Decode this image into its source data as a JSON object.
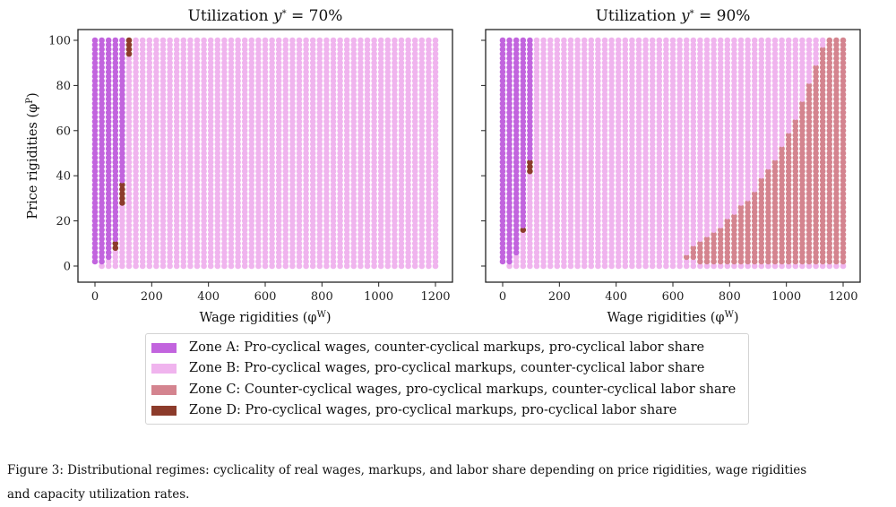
{
  "zones": {
    "A": {
      "label": "Zone A: Pro-cyclical wages, counter-cyclical markups, pro-cyclical labor share",
      "color": "#c264de"
    },
    "B": {
      "label": "Zone B: Pro-cyclical wages, pro-cyclical markups, counter-cyclical labor share",
      "color": "#f0b4ee"
    },
    "C": {
      "label": "Zone C: Counter-cyclical wages, pro-cyclical markups, counter-cyclical labor share",
      "color": "#d4848f"
    },
    "D": {
      "label": "Zone D: Pro-cyclical wages, pro-cyclical markups, pro-cyclical labor share",
      "color": "#8c3b2b"
    }
  },
  "caption": {
    "line1": "Figure 3: Distributional regimes: cyclicality of real wages, markups, and labor share depending on price rigidities, wage rigidities",
    "line2": "and capacity utilization rates."
  },
  "chart_data": [
    {
      "type": "scatter",
      "title": "Utilization y* = 70%",
      "title_prefix": "Utilization ",
      "title_var": "y",
      "title_sup": "*",
      "title_suffix": " = 70%",
      "xlabel": "Wage rigidities (φW)",
      "xlabel_prefix": "Wage rigidities (φ",
      "xlabel_sup": "W",
      "xlabel_suffix": ")",
      "ylabel": "Price rigidities (φP)",
      "ylabel_prefix": "Price rigidities (φ",
      "ylabel_sup": "P",
      "ylabel_suffix": ")",
      "xlim": [
        0,
        1200
      ],
      "ylim": [
        0,
        100
      ],
      "xticks": [
        0,
        200,
        400,
        600,
        800,
        1000,
        1200
      ],
      "yticks": [
        0,
        20,
        40,
        60,
        80,
        100
      ],
      "show_ytick_labels": true,
      "grid": {
        "x_start": 0,
        "x_step": 24,
        "x_count": 51,
        "y_start": 0,
        "y_step": 2,
        "y_count": 51
      },
      "default_zone": "B",
      "column_overrides": [
        {
          "x": 0,
          "segments": [
            {
              "zone": "none",
              "y": [
                0,
                0
              ]
            },
            {
              "zone": "A",
              "y": [
                2,
                100
              ]
            }
          ]
        },
        {
          "x": 24,
          "segments": [
            {
              "zone": "A",
              "y": [
                2,
                100
              ]
            }
          ]
        },
        {
          "x": 48,
          "segments": [
            {
              "zone": "A",
              "y": [
                4,
                100
              ]
            }
          ]
        },
        {
          "x": 72,
          "segments": [
            {
              "zone": "D",
              "y": [
                8,
                10
              ]
            },
            {
              "zone": "A",
              "y": [
                12,
                100
              ]
            }
          ]
        },
        {
          "x": 96,
          "segments": [
            {
              "zone": "D",
              "y": [
                28,
                36
              ]
            },
            {
              "zone": "A",
              "y": [
                38,
                100
              ]
            }
          ]
        },
        {
          "x": 120,
          "segments": [
            {
              "zone": "D",
              "y": [
                94,
                100
              ]
            }
          ]
        }
      ]
    },
    {
      "type": "scatter",
      "title": "Utilization y* = 90%",
      "title_prefix": "Utilization ",
      "title_var": "y",
      "title_sup": "*",
      "title_suffix": " = 90%",
      "xlabel": "Wage rigidities (φW)",
      "xlabel_prefix": "Wage rigidities (φ",
      "xlabel_sup": "W",
      "xlabel_suffix": ")",
      "xlim": [
        0,
        1200
      ],
      "ylim": [
        0,
        100
      ],
      "xticks": [
        0,
        200,
        400,
        600,
        800,
        1000,
        1200
      ],
      "yticks": [
        0,
        20,
        40,
        60,
        80,
        100
      ],
      "show_ytick_labels": false,
      "grid": {
        "x_start": 0,
        "x_step": 24,
        "x_count": 51,
        "y_start": 0,
        "y_step": 2,
        "y_count": 51
      },
      "default_zone": "B",
      "column_overrides": [
        {
          "x": 0,
          "segments": [
            {
              "zone": "none",
              "y": [
                0,
                0
              ]
            },
            {
              "zone": "A",
              "y": [
                2,
                100
              ]
            }
          ]
        },
        {
          "x": 24,
          "segments": [
            {
              "zone": "A",
              "y": [
                2,
                100
              ]
            }
          ]
        },
        {
          "x": 48,
          "segments": [
            {
              "zone": "A",
              "y": [
                6,
                100
              ]
            }
          ]
        },
        {
          "x": 72,
          "segments": [
            {
              "zone": "D",
              "y": [
                16,
                16
              ]
            },
            {
              "zone": "A",
              "y": [
                18,
                100
              ]
            }
          ]
        },
        {
          "x": 96,
          "segments": [
            {
              "zone": "D",
              "y": [
                42,
                46
              ]
            },
            {
              "zone": "A",
              "y": [
                48,
                100
              ]
            }
          ]
        },
        {
          "x": 648,
          "segments": [
            {
              "zone": "C",
              "y": [
                4,
                4
              ]
            }
          ]
        },
        {
          "x": 672,
          "segments": [
            {
              "zone": "C",
              "y": [
                4,
                8
              ]
            }
          ]
        },
        {
          "x": 696,
          "segments": [
            {
              "zone": "C",
              "y": [
                2,
                10
              ]
            }
          ]
        },
        {
          "x": 720,
          "segments": [
            {
              "zone": "C",
              "y": [
                2,
                12
              ]
            }
          ]
        },
        {
          "x": 744,
          "segments": [
            {
              "zone": "C",
              "y": [
                2,
                14
              ]
            }
          ]
        },
        {
          "x": 768,
          "segments": [
            {
              "zone": "C",
              "y": [
                2,
                16
              ]
            }
          ]
        },
        {
          "x": 792,
          "segments": [
            {
              "zone": "C",
              "y": [
                2,
                20
              ]
            }
          ]
        },
        {
          "x": 816,
          "segments": [
            {
              "zone": "C",
              "y": [
                2,
                22
              ]
            }
          ]
        },
        {
          "x": 840,
          "segments": [
            {
              "zone": "C",
              "y": [
                2,
                26
              ]
            }
          ]
        },
        {
          "x": 864,
          "segments": [
            {
              "zone": "C",
              "y": [
                2,
                28
              ]
            }
          ]
        },
        {
          "x": 888,
          "segments": [
            {
              "zone": "C",
              "y": [
                2,
                32
              ]
            }
          ]
        },
        {
          "x": 912,
          "segments": [
            {
              "zone": "C",
              "y": [
                2,
                38
              ]
            }
          ]
        },
        {
          "x": 936,
          "segments": [
            {
              "zone": "C",
              "y": [
                2,
                42
              ]
            }
          ]
        },
        {
          "x": 960,
          "segments": [
            {
              "zone": "C",
              "y": [
                2,
                46
              ]
            }
          ]
        },
        {
          "x": 984,
          "segments": [
            {
              "zone": "C",
              "y": [
                2,
                52
              ]
            }
          ]
        },
        {
          "x": 1008,
          "segments": [
            {
              "zone": "C",
              "y": [
                2,
                58
              ]
            }
          ]
        },
        {
          "x": 1032,
          "segments": [
            {
              "zone": "C",
              "y": [
                2,
                64
              ]
            }
          ]
        },
        {
          "x": 1056,
          "segments": [
            {
              "zone": "C",
              "y": [
                2,
                72
              ]
            }
          ]
        },
        {
          "x": 1080,
          "segments": [
            {
              "zone": "C",
              "y": [
                2,
                80
              ]
            }
          ]
        },
        {
          "x": 1104,
          "segments": [
            {
              "zone": "C",
              "y": [
                2,
                88
              ]
            }
          ]
        },
        {
          "x": 1128,
          "segments": [
            {
              "zone": "C",
              "y": [
                2,
                96
              ]
            }
          ]
        },
        {
          "x": 1152,
          "segments": [
            {
              "zone": "C",
              "y": [
                2,
                100
              ]
            }
          ]
        },
        {
          "x": 1176,
          "segments": [
            {
              "zone": "C",
              "y": [
                2,
                100
              ]
            }
          ]
        },
        {
          "x": 1200,
          "segments": [
            {
              "zone": "C",
              "y": [
                2,
                100
              ]
            }
          ]
        }
      ]
    }
  ]
}
